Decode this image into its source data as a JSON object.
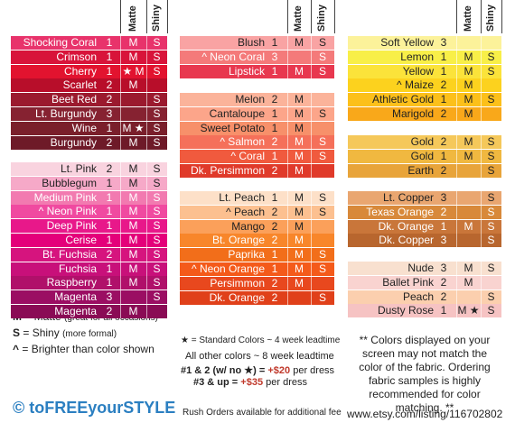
{
  "columns": [
    {
      "matte_header": "Matte",
      "shiny_header": "Shiny",
      "groups": [
        {
          "rows": [
            {
              "name": "Shocking Coral",
              "num": "1",
              "matte": "M",
              "shiny": "S",
              "color": "#e8336b"
            },
            {
              "name": "Crimson",
              "num": "1",
              "matte": "M",
              "shiny": "S",
              "color": "#d8143a"
            },
            {
              "name": "Cherry",
              "num": "1",
              "matte": "★ M",
              "shiny": "S",
              "color": "#e2132f"
            },
            {
              "name": "Scarlet",
              "num": "2",
              "matte": "M",
              "color": "#b80e2a"
            },
            {
              "name": "Beet Red",
              "num": "2",
              "shiny": "S",
              "color": "#9b1a2e"
            },
            {
              "name": "Lt. Burgundy",
              "num": "3",
              "shiny": "S",
              "color": "#862231"
            },
            {
              "name": "Wine",
              "num": "1",
              "matte": "M ★",
              "shiny": "S",
              "color": "#7a1f2b"
            },
            {
              "name": "Burgundy",
              "num": "2",
              "matte": "M",
              "shiny": "S",
              "color": "#6e1a28"
            }
          ]
        },
        {
          "rows": [
            {
              "name": "Lt. Pink",
              "num": "2",
              "matte": "M",
              "shiny": "S",
              "color": "#f9d3df"
            },
            {
              "name": "Bubblegum",
              "num": "1",
              "matte": "M",
              "shiny": "S",
              "color": "#f6a9c8"
            },
            {
              "name": "Medium Pink",
              "num": "1",
              "matte": "M",
              "shiny": "S",
              "color": "#f27ab0"
            },
            {
              "name": "^ Neon Pink",
              "num": "1",
              "matte": "M",
              "shiny": "S",
              "color": "#f04aa0"
            },
            {
              "name": "Deep Pink",
              "num": "1",
              "matte": "M",
              "shiny": "S",
              "color": "#e8188a"
            },
            {
              "name": "Cerise",
              "num": "1",
              "matte": "M",
              "shiny": "S",
              "color": "#e4007a"
            },
            {
              "name": "Bt. Fuchsia",
              "num": "2",
              "matte": "M",
              "shiny": "S",
              "color": "#d6147e"
            },
            {
              "name": "Fuchsia",
              "num": "1",
              "matte": "M",
              "shiny": "S",
              "color": "#c8107a"
            },
            {
              "name": "Raspberry",
              "num": "1",
              "matte": "M",
              "shiny": "S",
              "color": "#b0106a"
            },
            {
              "name": "Magenta",
              "num": "3",
              "shiny": "S",
              "color": "#9b0e63"
            },
            {
              "name": "Magenta",
              "num": "2",
              "matte": "M",
              "color": "#8a0b55"
            }
          ]
        }
      ]
    },
    {
      "matte_header": "Matte",
      "shiny_header": "Shiny",
      "groups": [
        {
          "rows": [
            {
              "name": "Blush",
              "num": "1",
              "matte": "M",
              "shiny": "S",
              "color": "#f9a3a3"
            },
            {
              "name": "^ Neon Coral",
              "num": "3",
              "shiny": "S",
              "color": "#f47a7a"
            },
            {
              "name": "Lipstick",
              "num": "1",
              "matte": "M",
              "shiny": "S",
              "color": "#e8384f"
            }
          ]
        },
        {
          "rows": [
            {
              "name": "Melon",
              "num": "2",
              "matte": "M",
              "color": "#fbb39a"
            },
            {
              "name": "Cantaloupe",
              "num": "1",
              "matte": "M",
              "shiny": "S",
              "color": "#fca58a"
            },
            {
              "name": "Sweet Potato",
              "num": "1",
              "matte": "M",
              "color": "#f7906a"
            },
            {
              "name": "^ Salmon",
              "num": "2",
              "matte": "M",
              "shiny": "S",
              "color": "#f5705a"
            },
            {
              "name": "^ Coral",
              "num": "1",
              "matte": "M",
              "shiny": "S",
              "color": "#f05a3e"
            },
            {
              "name": "Dk. Persimmon",
              "num": "2",
              "matte": "M",
              "color": "#e03a2a"
            }
          ]
        },
        {
          "rows": [
            {
              "name": "Lt. Peach",
              "num": "1",
              "matte": "M",
              "shiny": "S",
              "color": "#fde0c8"
            },
            {
              "name": "^ Peach",
              "num": "2",
              "matte": "M",
              "shiny": "S",
              "color": "#fcc090"
            },
            {
              "name": "Mango",
              "num": "2",
              "matte": "M",
              "color": "#fba05a"
            },
            {
              "name": "Bt. Orange",
              "num": "2",
              "matte": "M",
              "color": "#f8862a"
            },
            {
              "name": "Paprika",
              "num": "1",
              "matte": "M",
              "shiny": "S",
              "color": "#f26e1a"
            },
            {
              "name": "^ Neon Orange",
              "num": "1",
              "matte": "M",
              "shiny": "S",
              "color": "#f45a1a"
            },
            {
              "name": "Persimmon",
              "num": "2",
              "matte": "M",
              "color": "#e8481e"
            },
            {
              "name": "Dk. Orange",
              "num": "2",
              "shiny": "S",
              "color": "#e0401a"
            }
          ]
        }
      ]
    },
    {
      "matte_header": "Matte",
      "shiny_header": "Shiny",
      "groups": [
        {
          "rows": [
            {
              "name": "Soft Yellow",
              "num": "3",
              "color": "#fcf29a"
            },
            {
              "name": "Lemon",
              "num": "1",
              "matte": "M",
              "shiny": "S",
              "color": "#f8ef48"
            },
            {
              "name": "Yellow",
              "num": "1",
              "matte": "M",
              "shiny": "S",
              "color": "#fbe33a"
            },
            {
              "name": "^ Maize",
              "num": "2",
              "matte": "M",
              "color": "#fcd21e"
            },
            {
              "name": "Athletic Gold",
              "num": "1",
              "matte": "M",
              "shiny": "S",
              "color": "#fcc01a"
            },
            {
              "name": "Marigold",
              "num": "2",
              "matte": "M",
              "color": "#f9a81a"
            }
          ]
        },
        {
          "rows": [
            {
              "name": "Gold",
              "num": "2",
              "matte": "M",
              "shiny": "S",
              "color": "#f5c85a"
            },
            {
              "name": "Gold",
              "num": "1",
              "matte": "M",
              "shiny": "S",
              "color": "#f0b840"
            },
            {
              "name": "Earth",
              "num": "2",
              "shiny": "S",
              "color": "#e8a43a"
            }
          ]
        },
        {
          "rows": [
            {
              "name": "Lt. Copper",
              "num": "3",
              "shiny": "S",
              "color": "#e9a670"
            },
            {
              "name": "Texas Orange",
              "num": "2",
              "shiny": "S",
              "color": "#d8893a"
            },
            {
              "name": "Dk. Orange",
              "num": "1",
              "matte": "M",
              "shiny": "S",
              "color": "#c9763a"
            },
            {
              "name": "Dk. Copper",
              "num": "3",
              "shiny": "S",
              "color": "#b8662e"
            }
          ]
        },
        {
          "rows": [
            {
              "name": "Nude",
              "num": "3",
              "matte": "M",
              "shiny": "S",
              "color": "#f8e0cf"
            },
            {
              "name": "Ballet Pink",
              "num": "2",
              "matte": "M",
              "color": "#f9d3d0"
            },
            {
              "name": "Peach",
              "num": "2",
              "shiny": "S",
              "color": "#fbcfae"
            },
            {
              "name": "Dusty Rose",
              "num": "1",
              "matte": "M ★",
              "shiny": "S",
              "color": "#f6c3c3"
            }
          ]
        }
      ]
    }
  ],
  "legend": {
    "matte": {
      "key": "M",
      "desc": "= Matte",
      "note": "(great for all occasions)"
    },
    "shiny": {
      "key": "S",
      "desc": "= Shiny",
      "note": "(more formal)"
    },
    "bright": {
      "key": "^",
      "desc": "= Brighter than color shown"
    }
  },
  "brand": "© toFREEyourSTYLE",
  "notes": {
    "standard": "★ = Standard Colors ~ 4 week leadtime",
    "other": "All other colors ~ 8 week leadtime",
    "price1": {
      "key": "#1 & 2 (w/ no ★) =",
      "amount": "+$20",
      "rest": "per dress"
    },
    "price2": {
      "key": "#3 & up =",
      "amount": "+$35",
      "rest": "per dress"
    },
    "rush": "Rush Orders available for additional fee"
  },
  "disclaimer": "** Colors displayed on your screen may not match the color of the fabric. Ordering fabric samples is highly recommended for color matching. **",
  "url": "www.etsy.com/listing/116702802"
}
